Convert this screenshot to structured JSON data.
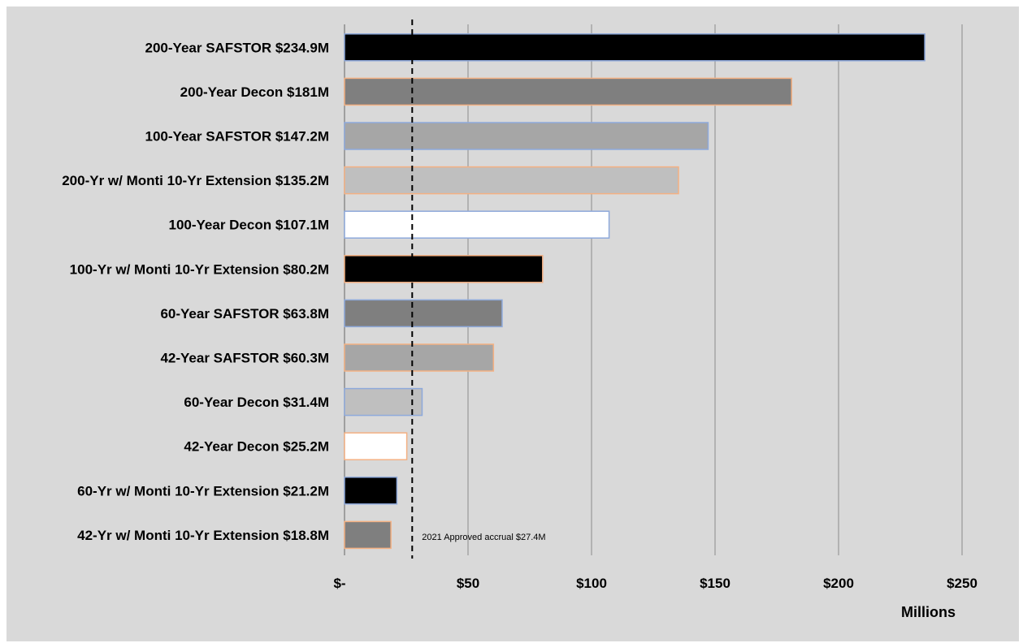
{
  "chart_data": {
    "type": "bar",
    "orientation": "horizontal",
    "categories": [
      "200-Year SAFSTOR $234.9M",
      "200-Year Decon $181M",
      "100-Year SAFSTOR $147.2M",
      "200-Yr w/ Monti 10-Yr Extension $135.2M",
      "100-Year Decon $107.1M",
      "100-Yr w/ Monti 10-Yr Extension $80.2M",
      "60-Year SAFSTOR $63.8M",
      "42-Year SAFSTOR $60.3M",
      "60-Year Decon $31.4M",
      "42-Year Decon $25.2M",
      "60-Yr w/ Monti 10-Yr Extension $21.2M",
      "42-Yr w/ Monti 10-Yr Extension $18.8M"
    ],
    "values": [
      234.9,
      181,
      147.2,
      135.2,
      107.1,
      80.2,
      63.8,
      60.3,
      31.4,
      25.2,
      21.2,
      18.8
    ],
    "bar_colors": [
      "#000000",
      "#7f7f7f",
      "#a6a6a6",
      "#bfbfbf",
      "#ffffff",
      "#000000",
      "#7f7f7f",
      "#a6a6a6",
      "#bfbfbf",
      "#ffffff",
      "#000000",
      "#7f7f7f"
    ],
    "bar_borders": [
      "#8ea9db",
      "#f4b183",
      "#8ea9db",
      "#f4b183",
      "#8ea9db",
      "#f4b183",
      "#8ea9db",
      "#f4b183",
      "#8ea9db",
      "#f4b183",
      "#8ea9db",
      "#f4b183"
    ],
    "xlim": [
      0,
      250
    ],
    "xticks": [
      0,
      50,
      100,
      150,
      200,
      250
    ],
    "xtick_labels": [
      "$-",
      "$50",
      "$100",
      "$150",
      "$200",
      "$250"
    ],
    "xlabel": "Millions",
    "grid": "vertical",
    "background": "#d9d9d9",
    "reference_line": {
      "value": 27.4,
      "label": "2021 Approved accrual $27.4M",
      "style": "dashed"
    }
  }
}
